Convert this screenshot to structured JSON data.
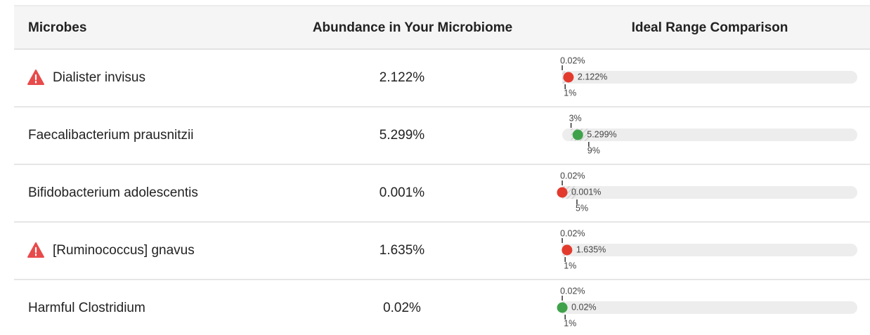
{
  "table": {
    "header": [
      "Microbes",
      "Abundance in Your Microbiome",
      "Ideal Range Comparison"
    ],
    "rows": [
      {
        "name": "Dialister invisus",
        "warning": true,
        "value": {
          "value": 2.122,
          "label": "2.122%"
        },
        "low": {
          "value": 0.02,
          "label": "0.02%"
        },
        "high": {
          "value": 1,
          "label": "1%"
        },
        "color": "#e23b2e"
      },
      {
        "name": "Faecalibacterium prausnitzii",
        "warning": false,
        "value": {
          "value": 5.299,
          "label": "5.299%"
        },
        "low": {
          "value": 3,
          "label": "3%"
        },
        "high": {
          "value": 9,
          "label": "9%"
        },
        "color": "#3fa24a"
      },
      {
        "name": "Bifidobacterium adolescentis",
        "warning": false,
        "value": {
          "value": 0.001,
          "label": "0.001%"
        },
        "low": {
          "value": 0.02,
          "label": "0.02%"
        },
        "high": {
          "value": 5,
          "label": "5%"
        },
        "color": "#e23b2e"
      },
      {
        "name": "[Ruminococcus] gnavus",
        "warning": true,
        "value": {
          "value": 1.635,
          "label": "1.635%"
        },
        "low": {
          "value": 0.02,
          "label": "0.02%"
        },
        "high": {
          "value": 1,
          "label": "1%"
        },
        "color": "#e23b2e"
      },
      {
        "name": "Harmful Clostridium",
        "warning": false,
        "value": {
          "value": 0.02,
          "label": "0.02%"
        },
        "low": {
          "value": 0.02,
          "label": "0.02%"
        },
        "high": {
          "value": 1,
          "label": "1%"
        },
        "color": "#3fa24a"
      }
    ]
  }
}
